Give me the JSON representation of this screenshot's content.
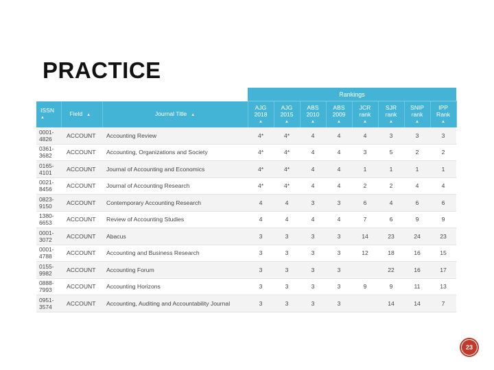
{
  "title": "PRACTICE",
  "table": {
    "group_header": "Rankings",
    "headers": {
      "issn": "ISSN",
      "field": "Field",
      "journal_title": "Journal Title",
      "ajg2018": [
        "AJG",
        "2018"
      ],
      "ajg2015": [
        "AJG",
        "2015"
      ],
      "abs2010": [
        "ABS",
        "2010"
      ],
      "abs2009": [
        "ABS",
        "2009"
      ],
      "jcr": [
        "JCR",
        "rank"
      ],
      "sjr": [
        "SJR",
        "rank"
      ],
      "snip": [
        "SNIP",
        "rank"
      ],
      "ipp": [
        "IPP",
        "Rank"
      ]
    },
    "sort_arrow": "▲",
    "rows": [
      {
        "issn": [
          "0001-",
          "4826"
        ],
        "field": "ACCOUNT",
        "journal": "Accounting Review",
        "ajg2018": "4*",
        "ajg2015": "4*",
        "abs2010": "4",
        "abs2009": "4",
        "jcr": "4",
        "sjr": "3",
        "snip": "3",
        "ipp": "3"
      },
      {
        "issn": [
          "0361-",
          "3682"
        ],
        "field": "ACCOUNT",
        "journal": "Accounting, Organizations and Society",
        "ajg2018": "4*",
        "ajg2015": "4*",
        "abs2010": "4",
        "abs2009": "4",
        "jcr": "3",
        "sjr": "5",
        "snip": "2",
        "ipp": "2"
      },
      {
        "issn": [
          "0165-",
          "4101"
        ],
        "field": "ACCOUNT",
        "journal": "Journal of Accounting and Economics",
        "ajg2018": "4*",
        "ajg2015": "4*",
        "abs2010": "4",
        "abs2009": "4",
        "jcr": "1",
        "sjr": "1",
        "snip": "1",
        "ipp": "1"
      },
      {
        "issn": [
          "0021-",
          "8456"
        ],
        "field": "ACCOUNT",
        "journal": "Journal of Accounting Research",
        "ajg2018": "4*",
        "ajg2015": "4*",
        "abs2010": "4",
        "abs2009": "4",
        "jcr": "2",
        "sjr": "2",
        "snip": "4",
        "ipp": "4"
      },
      {
        "issn": [
          "0823-",
          "9150"
        ],
        "field": "ACCOUNT",
        "journal": "Contemporary Accounting Research",
        "ajg2018": "4",
        "ajg2015": "4",
        "abs2010": "3",
        "abs2009": "3",
        "jcr": "6",
        "sjr": "4",
        "snip": "6",
        "ipp": "6"
      },
      {
        "issn": [
          "1380-",
          "6653"
        ],
        "field": "ACCOUNT",
        "journal": "Review of Accounting Studies",
        "ajg2018": "4",
        "ajg2015": "4",
        "abs2010": "4",
        "abs2009": "4",
        "jcr": "7",
        "sjr": "6",
        "snip": "9",
        "ipp": "9"
      },
      {
        "issn": [
          "0001-",
          "3072"
        ],
        "field": "ACCOUNT",
        "journal": "Abacus",
        "ajg2018": "3",
        "ajg2015": "3",
        "abs2010": "3",
        "abs2009": "3",
        "jcr": "14",
        "sjr": "23",
        "snip": "24",
        "ipp": "23"
      },
      {
        "issn": [
          "0001-",
          "4788"
        ],
        "field": "ACCOUNT",
        "journal": "Accounting and Business Research",
        "ajg2018": "3",
        "ajg2015": "3",
        "abs2010": "3",
        "abs2009": "3",
        "jcr": "12",
        "sjr": "18",
        "snip": "16",
        "ipp": "15"
      },
      {
        "issn": [
          "0155-",
          "9982"
        ],
        "field": "ACCOUNT",
        "journal": "Accounting Forum",
        "ajg2018": "3",
        "ajg2015": "3",
        "abs2010": "3",
        "abs2009": "3",
        "jcr": "",
        "sjr": "22",
        "snip": "16",
        "ipp": "17"
      },
      {
        "issn": [
          "0888-",
          "7993"
        ],
        "field": "ACCOUNT",
        "journal": "Accounting Horizons",
        "ajg2018": "3",
        "ajg2015": "3",
        "abs2010": "3",
        "abs2009": "3",
        "jcr": "9",
        "sjr": "9",
        "snip": "11",
        "ipp": "13"
      },
      {
        "issn": [
          "0951-",
          "3574"
        ],
        "field": "ACCOUNT",
        "journal": "Accounting, Auditing and Accountability Journal",
        "ajg2018": "3",
        "ajg2015": "3",
        "abs2010": "3",
        "abs2009": "3",
        "jcr": "",
        "sjr": "14",
        "snip": "14",
        "ipp": "7"
      }
    ]
  },
  "page_number": "23",
  "colors": {
    "header": "#44b4d6",
    "badge": "#c0392b"
  }
}
